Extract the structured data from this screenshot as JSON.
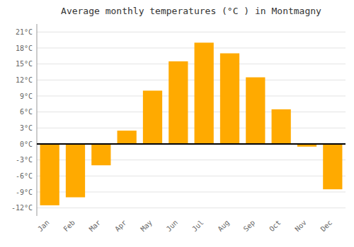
{
  "chart_data": {
    "type": "bar",
    "title": "Average monthly temperatures (°C ) in Montmagny",
    "categories": [
      "Jan",
      "Feb",
      "Mar",
      "Apr",
      "May",
      "Jun",
      "Jul",
      "Aug",
      "Sep",
      "Oct",
      "Nov",
      "Dec"
    ],
    "values": [
      -11.5,
      -10.0,
      -4.0,
      2.5,
      10.0,
      15.5,
      19.0,
      17.0,
      12.5,
      6.5,
      -0.5,
      -8.5
    ],
    "color": "#FFAA00",
    "ylim": [
      -13.5,
      22.5
    ],
    "yticks": [
      {
        "value": -12,
        "label": "-12°C"
      },
      {
        "value": -9,
        "label": "-9°C"
      },
      {
        "value": -6,
        "label": "-6°C"
      },
      {
        "value": -3,
        "label": "-3°C"
      },
      {
        "value": 0,
        "label": "0°C"
      },
      {
        "value": 3,
        "label": "3°C"
      },
      {
        "value": 6,
        "label": "6°C"
      },
      {
        "value": 9,
        "label": "9°C"
      },
      {
        "value": 12,
        "label": "12°C"
      },
      {
        "value": 15,
        "label": "15°C"
      },
      {
        "value": 18,
        "label": "18°C"
      },
      {
        "value": 21,
        "label": "21°C"
      }
    ],
    "grid": true
  }
}
